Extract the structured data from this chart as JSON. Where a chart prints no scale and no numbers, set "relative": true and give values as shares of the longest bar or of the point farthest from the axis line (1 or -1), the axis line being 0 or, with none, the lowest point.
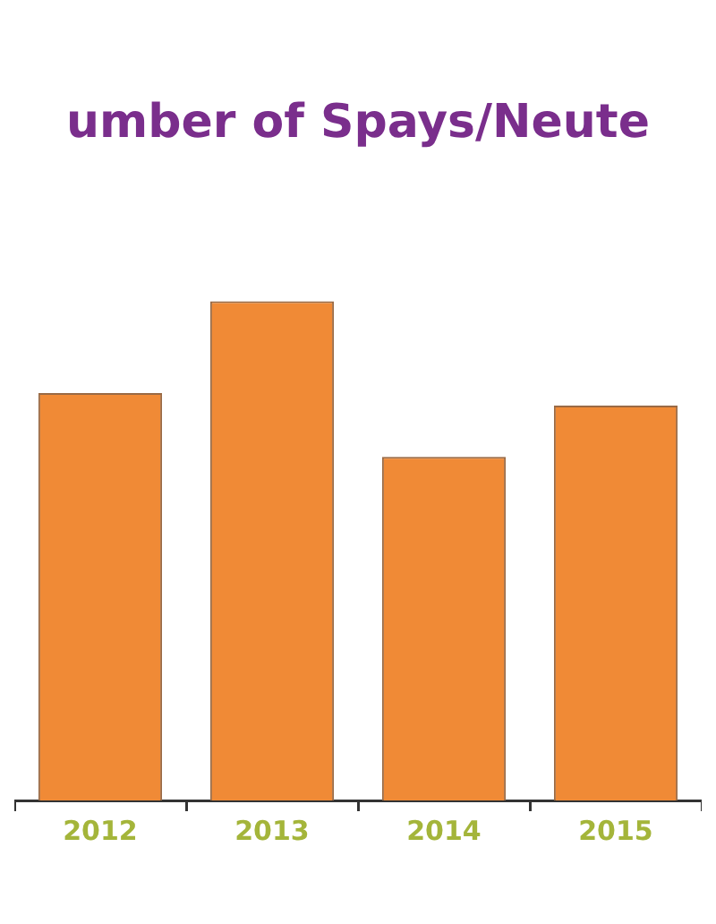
{
  "chart_data": {
    "type": "bar",
    "title": "umber of Spays/Neute",
    "categories": [
      "2012",
      "2013",
      "2014",
      "2015"
    ],
    "values": [
      0.816,
      1,
      0.688,
      0.791
    ],
    "color": "#f08a36",
    "relative": true
  }
}
